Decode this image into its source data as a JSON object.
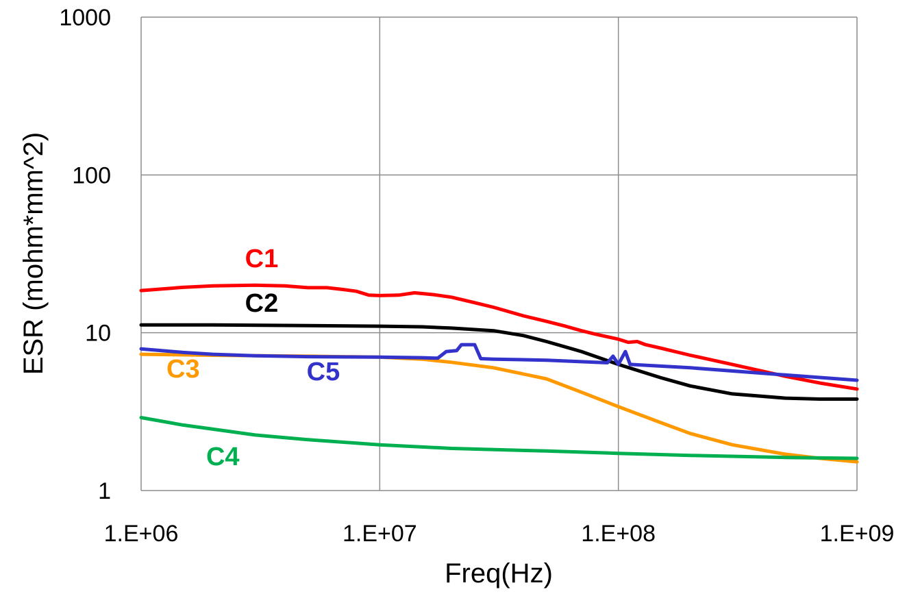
{
  "chart_data": {
    "type": "line",
    "title": "",
    "xlabel": "Freq(Hz)",
    "ylabel": "ESR (mohm*mm^2)",
    "x_scale": "log",
    "y_scale": "log",
    "xlim": [
      1000000,
      1000000000
    ],
    "ylim": [
      1,
      1000
    ],
    "grid": true,
    "x_ticks": [
      {
        "value": 1000000,
        "label": "1.E+06"
      },
      {
        "value": 10000000,
        "label": "1.E+07"
      },
      {
        "value": 100000000,
        "label": "1.E+08"
      },
      {
        "value": 1000000000,
        "label": "1.E+09"
      }
    ],
    "y_ticks": [
      {
        "value": 1,
        "label": "1"
      },
      {
        "value": 10,
        "label": "10"
      },
      {
        "value": 100,
        "label": "100"
      },
      {
        "value": 1000,
        "label": "1000"
      }
    ],
    "series": [
      {
        "name": "C1",
        "color": "#ff0000",
        "points": [
          [
            1000000,
            18.5
          ],
          [
            1500000,
            19.4
          ],
          [
            2000000,
            19.8
          ],
          [
            3000000,
            20.0
          ],
          [
            4000000,
            19.8
          ],
          [
            5000000,
            19.3
          ],
          [
            6000000,
            19.3
          ],
          [
            7000000,
            18.8
          ],
          [
            8000000,
            18.3
          ],
          [
            9000000,
            17.3
          ],
          [
            10000000,
            17.2
          ],
          [
            12000000,
            17.3
          ],
          [
            14000000,
            17.9
          ],
          [
            17000000,
            17.4
          ],
          [
            20000000,
            16.8
          ],
          [
            25000000,
            15.5
          ],
          [
            30000000,
            14.5
          ],
          [
            40000000,
            12.8
          ],
          [
            50000000,
            11.8
          ],
          [
            60000000,
            11.0
          ],
          [
            70000000,
            10.3
          ],
          [
            80000000,
            9.8
          ],
          [
            100000000,
            9.1
          ],
          [
            110000000,
            8.7
          ],
          [
            120000000,
            8.8
          ],
          [
            130000000,
            8.4
          ],
          [
            150000000,
            8.0
          ],
          [
            200000000,
            7.2
          ],
          [
            300000000,
            6.3
          ],
          [
            500000000,
            5.3
          ],
          [
            700000000,
            4.8
          ],
          [
            1000000000,
            4.4
          ]
        ]
      },
      {
        "name": "C2",
        "color": "#000000",
        "points": [
          [
            1000000,
            11.2
          ],
          [
            2000000,
            11.2
          ],
          [
            5000000,
            11.1
          ],
          [
            10000000,
            11.0
          ],
          [
            15000000,
            10.9
          ],
          [
            20000000,
            10.7
          ],
          [
            30000000,
            10.3
          ],
          [
            40000000,
            9.6
          ],
          [
            50000000,
            8.8
          ],
          [
            70000000,
            7.6
          ],
          [
            100000000,
            6.3
          ],
          [
            150000000,
            5.2
          ],
          [
            200000000,
            4.6
          ],
          [
            300000000,
            4.1
          ],
          [
            500000000,
            3.85
          ],
          [
            700000000,
            3.8
          ],
          [
            1000000000,
            3.8
          ]
        ]
      },
      {
        "name": "C3",
        "color": "#ff9900",
        "points": [
          [
            1000000,
            7.3
          ],
          [
            2000000,
            7.2
          ],
          [
            5000000,
            7.1
          ],
          [
            10000000,
            7.0
          ],
          [
            15000000,
            6.8
          ],
          [
            20000000,
            6.5
          ],
          [
            30000000,
            6.0
          ],
          [
            50000000,
            5.1
          ],
          [
            70000000,
            4.2
          ],
          [
            100000000,
            3.4
          ],
          [
            150000000,
            2.7
          ],
          [
            200000000,
            2.3
          ],
          [
            300000000,
            1.95
          ],
          [
            500000000,
            1.7
          ],
          [
            700000000,
            1.6
          ],
          [
            1000000000,
            1.52
          ]
        ]
      },
      {
        "name": "C4",
        "color": "#00b050",
        "points": [
          [
            1000000,
            2.9
          ],
          [
            1500000,
            2.6
          ],
          [
            2000000,
            2.45
          ],
          [
            3000000,
            2.25
          ],
          [
            5000000,
            2.1
          ],
          [
            10000000,
            1.95
          ],
          [
            20000000,
            1.85
          ],
          [
            50000000,
            1.78
          ],
          [
            100000000,
            1.72
          ],
          [
            200000000,
            1.67
          ],
          [
            500000000,
            1.62
          ],
          [
            1000000000,
            1.6
          ]
        ]
      },
      {
        "name": "C5",
        "color": "#3333cc",
        "points": [
          [
            1000000,
            7.9
          ],
          [
            1500000,
            7.5
          ],
          [
            2000000,
            7.3
          ],
          [
            3000000,
            7.15
          ],
          [
            5000000,
            7.05
          ],
          [
            10000000,
            7.0
          ],
          [
            15000000,
            6.95
          ],
          [
            17500000,
            6.9
          ],
          [
            19000000,
            7.6
          ],
          [
            21000000,
            7.7
          ],
          [
            22000000,
            8.4
          ],
          [
            25000000,
            8.4
          ],
          [
            26500000,
            6.85
          ],
          [
            30000000,
            6.8
          ],
          [
            50000000,
            6.7
          ],
          [
            90000000,
            6.45
          ],
          [
            95000000,
            7.1
          ],
          [
            100000000,
            6.3
          ],
          [
            107000000,
            7.6
          ],
          [
            112000000,
            6.3
          ],
          [
            200000000,
            6.0
          ],
          [
            500000000,
            5.4
          ],
          [
            1000000000,
            5.0
          ]
        ]
      }
    ],
    "annotations": [
      {
        "text": "C1",
        "series": "C1",
        "x": 3200000,
        "y": 26.0
      },
      {
        "text": "C2",
        "series": "C2",
        "x": 3200000,
        "y": 13.6
      },
      {
        "text": "C3",
        "series": "C3",
        "x": 1500000,
        "y": 5.2
      },
      {
        "text": "C5",
        "series": "C5",
        "x": 5800000,
        "y": 5.0
      },
      {
        "text": "C4",
        "series": "C4",
        "x": 2200000,
        "y": 1.45
      }
    ]
  }
}
